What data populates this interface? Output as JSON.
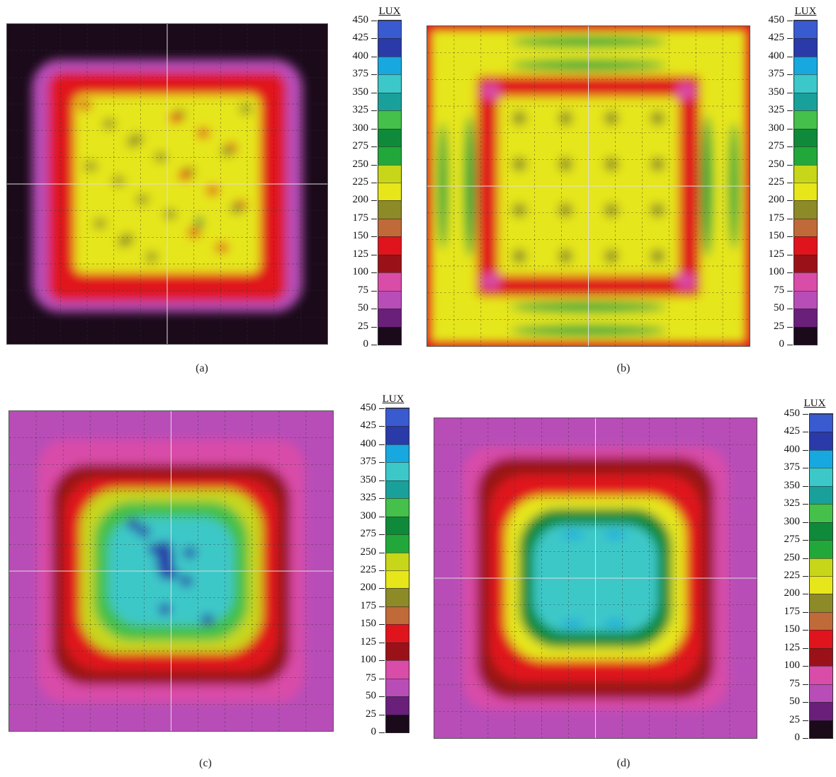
{
  "chart_data": [
    {
      "type": "heatmap",
      "panel": "(a)",
      "colorbar": {
        "label": "LUX",
        "ticks": [
          "450",
          "425",
          "400",
          "375",
          "350",
          "325",
          "300",
          "275",
          "250",
          "225",
          "200",
          "175",
          "150",
          "125",
          "100",
          "75",
          "50",
          "25",
          "0"
        ],
        "range": [
          0,
          450
        ]
      },
      "grid": true,
      "pattern": "square-ring",
      "value_levels_lux": {
        "outside": 15,
        "edge": 70,
        "ring": 130,
        "interior": 205,
        "max": 275
      }
    },
    {
      "type": "heatmap",
      "panel": "(b)",
      "colorbar": {
        "label": "LUX",
        "ticks": [
          "450",
          "425",
          "400",
          "375",
          "350",
          "325",
          "300",
          "275",
          "250",
          "225",
          "200",
          "175",
          "150",
          "125",
          "100",
          "75",
          "50",
          "25",
          "0"
        ],
        "range": [
          0,
          450
        ]
      },
      "grid": true,
      "pattern": "square-ring-with-side-bands",
      "value_levels_lux": {
        "ring": 125,
        "interior": 205,
        "side_bands": 270,
        "corner_spots": 85
      }
    },
    {
      "type": "heatmap",
      "panel": "(c)",
      "colorbar": {
        "label": "LUX",
        "ticks": [
          "450",
          "425",
          "400",
          "375",
          "350",
          "325",
          "300",
          "275",
          "250",
          "225",
          "200",
          "175",
          "150",
          "125",
          "100",
          "75",
          "50",
          "25",
          "0"
        ],
        "range": [
          0,
          450
        ]
      },
      "grid": true,
      "pattern": "centered-peak",
      "value_levels_lux": {
        "outside": 60,
        "ring": 130,
        "mid": 230,
        "inner": 300,
        "center": 360,
        "max": 420
      }
    },
    {
      "type": "heatmap",
      "panel": "(d)",
      "colorbar": {
        "label": "LUX",
        "ticks": [
          "450",
          "425",
          "400",
          "375",
          "350",
          "325",
          "300",
          "275",
          "250",
          "225",
          "200",
          "175",
          "150",
          "125",
          "100",
          "75",
          "50",
          "25",
          "0"
        ],
        "range": [
          0,
          450
        ]
      },
      "grid": true,
      "pattern": "centered-peak-smooth",
      "value_levels_lux": {
        "outside": 70,
        "ring": 130,
        "mid": 200,
        "inner": 280,
        "center": 355,
        "max": 390
      }
    }
  ],
  "colorscale": [
    {
      "from": 0,
      "to": 25,
      "color": "#1a0a1a"
    },
    {
      "from": 25,
      "to": 50,
      "color": "#6a1f7a"
    },
    {
      "from": 50,
      "to": 75,
      "color": "#b84db8"
    },
    {
      "from": 75,
      "to": 100,
      "color": "#d94ca8"
    },
    {
      "from": 100,
      "to": 125,
      "color": "#9a1218"
    },
    {
      "from": 125,
      "to": 150,
      "color": "#e0141c"
    },
    {
      "from": 150,
      "to": 175,
      "color": "#c06a3a"
    },
    {
      "from": 175,
      "to": 200,
      "color": "#8d8a28"
    },
    {
      "from": 200,
      "to": 225,
      "color": "#e6e61a"
    },
    {
      "from": 225,
      "to": 250,
      "color": "#c8d61a"
    },
    {
      "from": 250,
      "to": 275,
      "color": "#22a83a"
    },
    {
      "from": 275,
      "to": 300,
      "color": "#0f8a3a"
    },
    {
      "from": 300,
      "to": 325,
      "color": "#45c04a"
    },
    {
      "from": 325,
      "to": 350,
      "color": "#1aa09a"
    },
    {
      "from": 350,
      "to": 375,
      "color": "#3cc8c8"
    },
    {
      "from": 375,
      "to": 400,
      "color": "#18a8e0"
    },
    {
      "from": 400,
      "to": 425,
      "color": "#2a3aa8"
    },
    {
      "from": 425,
      "to": 450,
      "color": "#3a5ad0"
    }
  ]
}
